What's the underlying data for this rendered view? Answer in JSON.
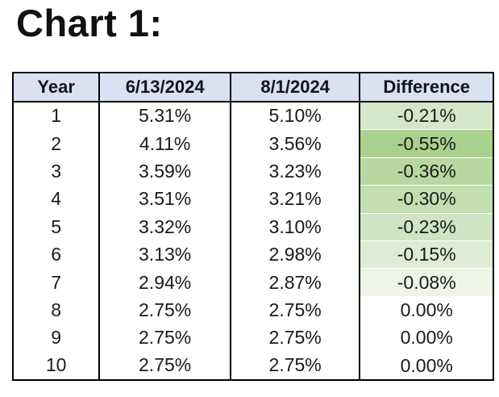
{
  "title": "Chart 1:",
  "header_bg": "#d9e1f2",
  "table": {
    "headers": {
      "year": "Year",
      "date1": "6/13/2024",
      "date2": "8/1/2024",
      "diff": "Difference"
    },
    "rows": [
      {
        "year": "1",
        "rate1": "5.31%",
        "rate2": "5.10%",
        "diff": "-0.21%",
        "diff_bg": "#d5e7c8"
      },
      {
        "year": "2",
        "rate1": "4.11%",
        "rate2": "3.56%",
        "diff": "-0.55%",
        "diff_bg": "#a9d18e"
      },
      {
        "year": "3",
        "rate1": "3.59%",
        "rate2": "3.23%",
        "diff": "-0.36%",
        "diff_bg": "#b7d8a1"
      },
      {
        "year": "4",
        "rate1": "3.51%",
        "rate2": "3.21%",
        "diff": "-0.30%",
        "diff_bg": "#c3dfaf"
      },
      {
        "year": "5",
        "rate1": "3.32%",
        "rate2": "3.10%",
        "diff": "-0.23%",
        "diff_bg": "#d0e4c3"
      },
      {
        "year": "6",
        "rate1": "3.13%",
        "rate2": "2.98%",
        "diff": "-0.15%",
        "diff_bg": "#dfecd5"
      },
      {
        "year": "7",
        "rate1": "2.94%",
        "rate2": "2.87%",
        "diff": "-0.08%",
        "diff_bg": "#edf4e7"
      },
      {
        "year": "8",
        "rate1": "2.75%",
        "rate2": "2.75%",
        "diff": "0.00%",
        "diff_bg": "#ffffff"
      },
      {
        "year": "9",
        "rate1": "2.75%",
        "rate2": "2.75%",
        "diff": "0.00%",
        "diff_bg": "#ffffff"
      },
      {
        "year": "10",
        "rate1": "2.75%",
        "rate2": "2.75%",
        "diff": "0.00%",
        "diff_bg": "#ffffff"
      }
    ]
  },
  "chart_data": {
    "type": "table",
    "title": "Chart 1:",
    "columns": [
      "Year",
      "6/13/2024",
      "8/1/2024",
      "Difference"
    ],
    "x": [
      1,
      2,
      3,
      4,
      5,
      6,
      7,
      8,
      9,
      10
    ],
    "series": [
      {
        "name": "6/13/2024",
        "values": [
          5.31,
          4.11,
          3.59,
          3.51,
          3.32,
          3.13,
          2.94,
          2.75,
          2.75,
          2.75
        ]
      },
      {
        "name": "8/1/2024",
        "values": [
          5.1,
          3.56,
          3.23,
          3.21,
          3.1,
          2.98,
          2.87,
          2.75,
          2.75,
          2.75
        ]
      },
      {
        "name": "Difference",
        "values": [
          -0.21,
          -0.55,
          -0.36,
          -0.3,
          -0.23,
          -0.15,
          -0.08,
          0.0,
          0.0,
          0.0
        ]
      }
    ],
    "units": "percent",
    "color_scale": {
      "column": "Difference",
      "min_color": "#a9d18e",
      "max_color": "#ffffff",
      "min_value": -0.55,
      "max_value": 0.0
    }
  }
}
